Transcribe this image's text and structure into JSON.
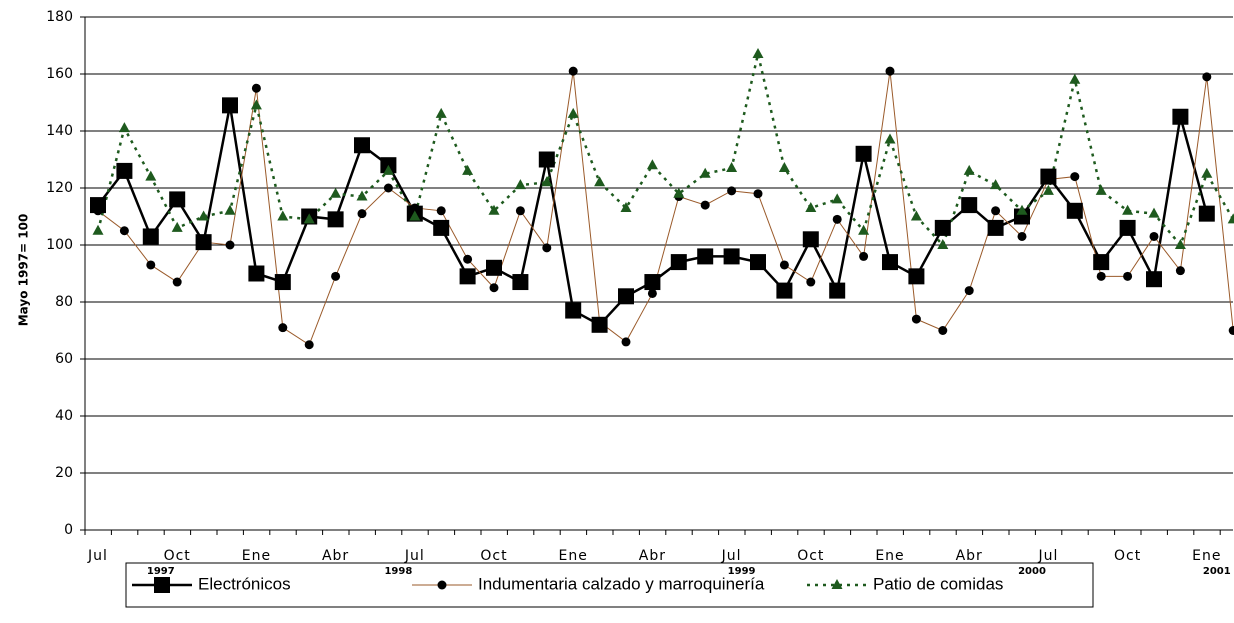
{
  "chart_data": {
    "type": "line",
    "y_label": "Mayo 1997= 100",
    "categories": [
      "Jul",
      null,
      null,
      "Oct",
      null,
      null,
      "Ene",
      null,
      null,
      "Abr",
      null,
      null,
      "Jul",
      null,
      null,
      "Oct",
      null,
      null,
      "Ene",
      null,
      null,
      "Abr",
      null,
      null,
      "Jul",
      null,
      null,
      "Oct",
      null,
      null,
      "Ene",
      null,
      null,
      "Abr",
      null,
      null,
      "Jul",
      null,
      null,
      "Oct",
      null,
      null,
      "Ene",
      null
    ],
    "year_labels": [
      null,
      null,
      "1997",
      null,
      null,
      null,
      null,
      null,
      null,
      null,
      null,
      "1998",
      null,
      null,
      null,
      null,
      null,
      null,
      null,
      null,
      null,
      null,
      null,
      null,
      "1999",
      null,
      null,
      null,
      null,
      null,
      null,
      null,
      null,
      null,
      null,
      "2000",
      null,
      null,
      null,
      null,
      null,
      null,
      "2001",
      null
    ],
    "ylim": [
      0,
      180
    ],
    "yticks": [
      0,
      20,
      40,
      60,
      80,
      100,
      120,
      140,
      160,
      180
    ],
    "grid": true,
    "series": [
      {
        "name": "Electrónicos",
        "color": "#000000",
        "marker_color": "#000000",
        "marker": "square",
        "dash": "solid",
        "values": [
          114,
          126,
          103,
          116,
          101,
          149,
          90,
          87,
          110,
          109,
          135,
          128,
          111,
          106,
          89,
          92,
          87,
          130,
          77,
          72,
          82,
          87,
          94,
          96,
          96,
          94,
          84,
          102,
          84,
          132,
          94,
          89,
          106,
          114,
          106,
          110,
          124,
          112,
          94,
          106,
          88,
          145,
          111,
          null
        ]
      },
      {
        "name": "Indumentaria calzado y marroquinería",
        "color": "#9a5a2a",
        "marker_color": "#000000",
        "marker": "circle",
        "dash": "solid",
        "values": [
          112,
          105,
          93,
          87,
          101,
          100,
          155,
          71,
          65,
          89,
          111,
          120,
          113,
          112,
          95,
          85,
          112,
          99,
          161,
          73,
          66,
          83,
          117,
          114,
          119,
          118,
          93,
          87,
          109,
          96,
          161,
          74,
          70,
          84,
          112,
          103,
          123,
          124,
          89,
          89,
          103,
          91,
          159,
          70
        ]
      },
      {
        "name": "Patio de comidas",
        "color": "#1e5a1e",
        "marker_color": "#1e5a1e",
        "marker": "triangle",
        "dash": "dotted",
        "values": [
          105,
          141,
          124,
          106,
          110,
          112,
          149,
          110,
          109,
          118,
          117,
          126,
          110,
          146,
          126,
          112,
          121,
          122,
          146,
          122,
          113,
          128,
          118,
          125,
          127,
          167,
          127,
          113,
          116,
          105,
          137,
          110,
          100,
          126,
          121,
          112,
          119,
          158,
          119,
          112,
          111,
          100,
          125,
          109
        ]
      }
    ]
  }
}
